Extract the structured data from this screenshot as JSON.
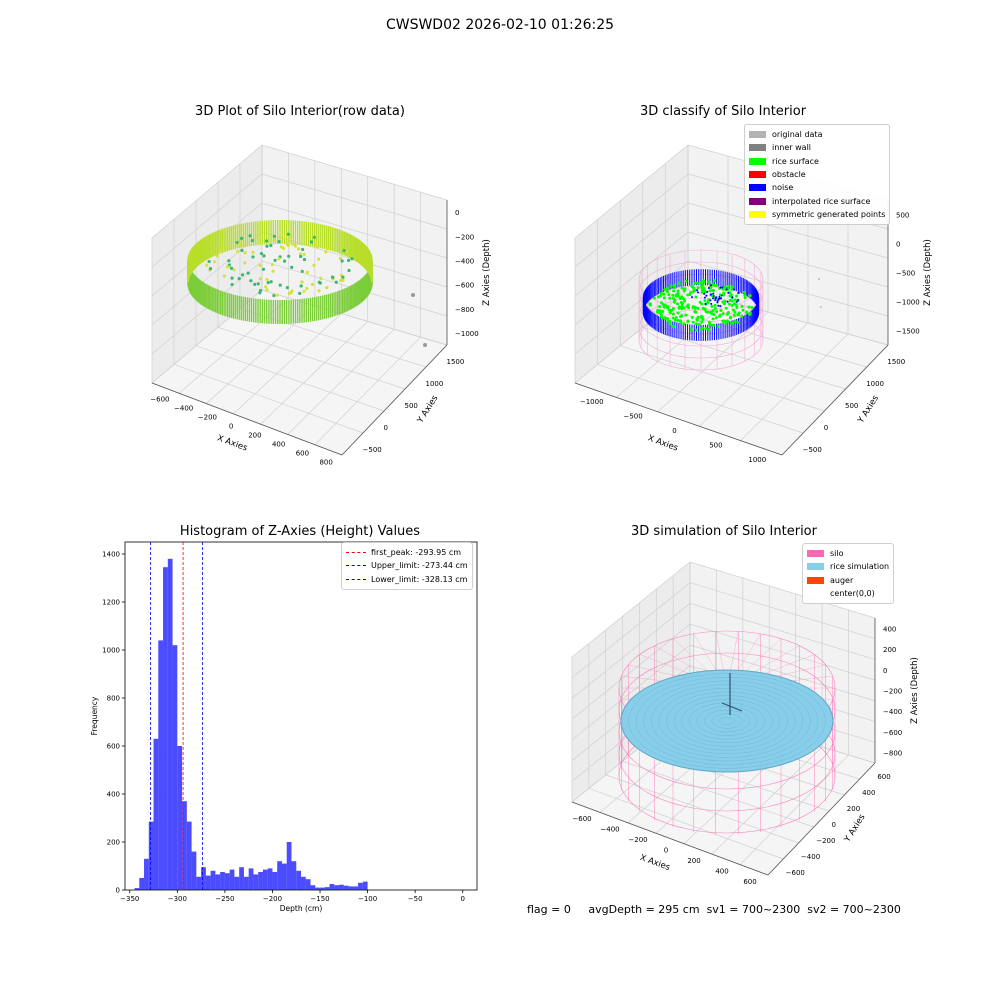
{
  "suptitle": "CWSWD02 2026-02-10 01:26:25",
  "status": {
    "flag": "flag = 0",
    "avg_depth": "avgDepth = 295 cm",
    "sv1": "sv1 = 700~2300",
    "sv2": "sv2 = 700~2300"
  },
  "chart_data": [
    {
      "type": "scatter",
      "title": "3D Plot of Silo Interior(row data)",
      "xlabel": "X Axies",
      "ylabel": "Y Axies",
      "zlabel": "Z Axies (Depth)",
      "x_ticks": [
        "−600",
        "−400",
        "−200",
        "0",
        "200",
        "400",
        "600",
        "800"
      ],
      "y_ticks": [
        "−500",
        "0",
        "500",
        "1000",
        "1500"
      ],
      "z_ticks": [
        "0",
        "−200",
        "−400",
        "−600",
        "−800",
        "−1000"
      ],
      "xlim": [
        -650,
        850
      ],
      "ylim": [
        -600,
        1700
      ],
      "zlim": [
        -1050,
        0
      ],
      "colormap": "viridis",
      "grid": true
    },
    {
      "type": "scatter",
      "title": "3D classify of Silo Interior",
      "xlabel": "X Axies",
      "ylabel": "Y Axies",
      "zlabel": "Z Axies (Depth)",
      "x_ticks": [
        "−1000",
        "−500",
        "0",
        "500",
        "1000"
      ],
      "y_ticks": [
        "−500",
        "0",
        "500",
        "1000",
        "1500"
      ],
      "z_ticks": [
        "500",
        "0",
        "−500",
        "−1000",
        "−1500"
      ],
      "xlim": [
        -1150,
        1150
      ],
      "ylim": [
        -600,
        1700
      ],
      "zlim": [
        -1550,
        550
      ],
      "legend_position": "top-right",
      "legend": [
        {
          "label": "original data",
          "color": "#b3b3b3"
        },
        {
          "label": "inner wall",
          "color": "#808080"
        },
        {
          "label": "rice surface",
          "color": "#00ff00"
        },
        {
          "label": "obstacle",
          "color": "#ff0000"
        },
        {
          "label": "noise",
          "color": "#0000ff"
        },
        {
          "label": "interpolated rice surface",
          "color": "#800080"
        },
        {
          "label": "symmetric generated points",
          "color": "#ffff00"
        }
      ],
      "grid": true
    },
    {
      "type": "bar",
      "title": "Histogram of Z-Axies (Height) Values",
      "xlabel": "Depth (cm)",
      "ylabel": "Frequency",
      "xlim": [
        -355,
        15
      ],
      "ylim": [
        0,
        1450
      ],
      "x_ticks": [
        -350,
        -300,
        -250,
        -200,
        -150,
        -100,
        -50,
        0
      ],
      "y_ticks": [
        0,
        200,
        400,
        600,
        800,
        1000,
        1200,
        1400
      ],
      "bin_width": 5,
      "bin_start": -345,
      "values": [
        8,
        50,
        130,
        285,
        630,
        1040,
        1345,
        1380,
        1020,
        600,
        370,
        285,
        160,
        55,
        95,
        60,
        80,
        65,
        75,
        70,
        85,
        55,
        95,
        55,
        90,
        65,
        75,
        85,
        90,
        75,
        120,
        110,
        200,
        120,
        80,
        55,
        45,
        20,
        10,
        10,
        12,
        25,
        20,
        22,
        18,
        15,
        15,
        30,
        35
      ],
      "bar_color": "#0000ff",
      "legend_position": "top-right",
      "markers": [
        {
          "label": "first_peak: -293.95 cm",
          "value": -293.95,
          "color": "#ff0000"
        },
        {
          "label": "Upper_limit: -273.44 cm",
          "value": -273.44,
          "color": "#0000ff"
        },
        {
          "label": "Lower_limit: -328.13 cm",
          "value": -328.13,
          "color": "#0000ff"
        }
      ],
      "grid": false
    },
    {
      "type": "area",
      "title": "3D simulation of Silo Interior",
      "xlabel": "X Axies",
      "ylabel": "Y Axies",
      "zlabel": "Z Axies (Depth)",
      "x_ticks": [
        "−600",
        "−400",
        "−200",
        "0",
        "200",
        "400",
        "600"
      ],
      "y_ticks": [
        "−600",
        "−400",
        "−200",
        "0",
        "200",
        "400",
        "600"
      ],
      "z_ticks": [
        "400",
        "200",
        "0",
        "−200",
        "−400",
        "−600",
        "−800"
      ],
      "xlim": [
        -700,
        700
      ],
      "ylim": [
        -700,
        700
      ],
      "zlim": [
        -900,
        450
      ],
      "legend_position": "top-right",
      "legend": [
        {
          "label": "silo",
          "color": "#ff69b4"
        },
        {
          "label": "rice simulation",
          "color": "#87ceeb"
        },
        {
          "label": "auger",
          "color": "#ff4500"
        },
        {
          "label": "center(0,0)",
          "color": "#ffffff"
        }
      ],
      "grid": true
    }
  ]
}
